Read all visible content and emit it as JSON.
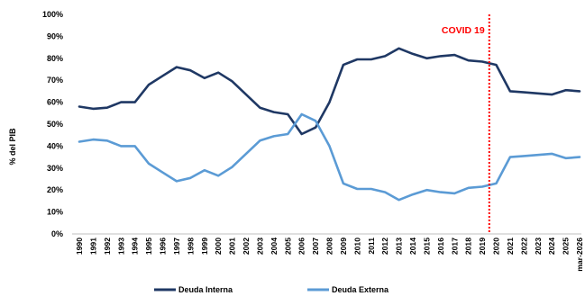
{
  "chart_data": {
    "type": "line",
    "ylabel": "% del PIB",
    "ylim": [
      0,
      100
    ],
    "y_ticks": [
      "0%",
      "10%",
      "20%",
      "30%",
      "40%",
      "50%",
      "60%",
      "70%",
      "80%",
      "90%",
      "100%"
    ],
    "grid": false,
    "legend_position": "bottom",
    "categories": [
      "1990",
      "1991",
      "1992",
      "1993",
      "1994",
      "1995",
      "1996",
      "1997",
      "1998",
      "1999",
      "2000",
      "2001",
      "2002",
      "2003",
      "2004",
      "2005",
      "2006",
      "2007",
      "2008",
      "2009",
      "2010",
      "2011",
      "2012",
      "2013",
      "2014",
      "2015",
      "2016",
      "2017",
      "2018",
      "2019",
      "2020",
      "2021",
      "2022",
      "2023",
      "2024",
      "2025",
      "mar-2026"
    ],
    "series": [
      {
        "name": "Deuda Interna",
        "color": "#1f3864",
        "values": [
          58,
          57,
          57.5,
          60,
          60,
          68,
          72,
          76,
          74.5,
          71,
          73.5,
          69.5,
          63.5,
          57.5,
          55.5,
          54.5,
          45.5,
          48.5,
          60,
          77,
          79.5,
          79.5,
          81,
          84.5,
          82,
          80,
          81,
          81.5,
          79,
          78.5,
          77,
          65,
          64.5,
          64,
          63.5,
          65.5,
          65
        ]
      },
      {
        "name": "Deuda Externa",
        "color": "#5b9bd5",
        "values": [
          42,
          43,
          42.5,
          40,
          40,
          32,
          28,
          24,
          25.5,
          29,
          26.5,
          30.5,
          36.5,
          42.5,
          44.5,
          45.5,
          54.5,
          51.5,
          40,
          23,
          20.5,
          20.5,
          19,
          15.5,
          18,
          20,
          19,
          18.5,
          21,
          21.5,
          23,
          35,
          35.5,
          36,
          36.5,
          34.5,
          35
        ]
      }
    ],
    "annotation": {
      "label": "COVID 19",
      "x_between": [
        "2019",
        "2020"
      ],
      "color": "#ff0000",
      "line_style": "dotted"
    }
  }
}
